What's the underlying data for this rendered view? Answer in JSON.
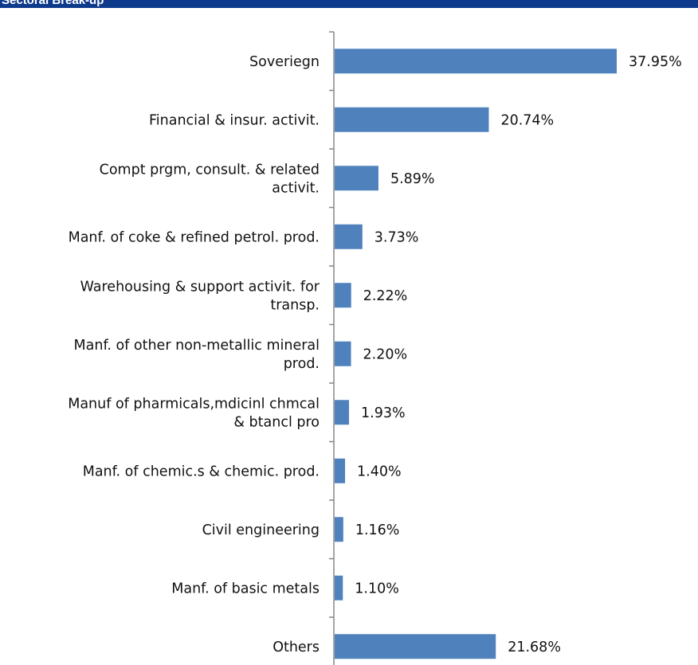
{
  "header": {
    "title": "Sectoral Break-up"
  },
  "colors": {
    "bar": "#4f81bd",
    "axis": "#868686",
    "header": "#0e3a8c"
  },
  "chart_data": {
    "type": "bar",
    "orientation": "horizontal",
    "categories": [
      "Soveriegn",
      "Financial & insur. activit.",
      "Compt prgm, consult. & related activit.",
      "Manf. of coke & refined petrol. prod.",
      "Warehousing & support activit. for transp.",
      "Manf. of other non-metallic mineral prod.",
      "Manuf of pharmicals,mdicinl chmcal & btancl pro",
      "Manf. of chemic.s & chemic. prod.",
      "Civil engineering",
      "Manf. of basic metals",
      "Others"
    ],
    "category_lines": [
      [
        "Soveriegn"
      ],
      [
        "Financial & insur. activit."
      ],
      [
        "Compt prgm, consult. & related",
        "activit."
      ],
      [
        "Manf. of coke & refined petrol. prod."
      ],
      [
        "Warehousing & support activit. for",
        "transp."
      ],
      [
        "Manf. of other non-metallic mineral",
        "prod."
      ],
      [
        "Manuf of pharmicals,mdicinl chmcal",
        "& btancl pro"
      ],
      [
        "Manf. of chemic.s & chemic. prod."
      ],
      [
        "Civil engineering"
      ],
      [
        "Manf. of basic metals"
      ],
      [
        "Others"
      ]
    ],
    "values": [
      37.95,
      20.74,
      5.89,
      3.73,
      2.22,
      2.2,
      1.93,
      1.4,
      1.16,
      1.1,
      21.68
    ],
    "value_labels": [
      "37.95%",
      "20.74%",
      "5.89%",
      "3.73%",
      "2.22%",
      "2.20%",
      "1.93%",
      "1.40%",
      "1.16%",
      "1.10%",
      "21.68%"
    ],
    "title": "",
    "xlabel": "",
    "ylabel": "",
    "xlim": [
      0,
      40
    ],
    "grid": false,
    "legend": "none"
  }
}
